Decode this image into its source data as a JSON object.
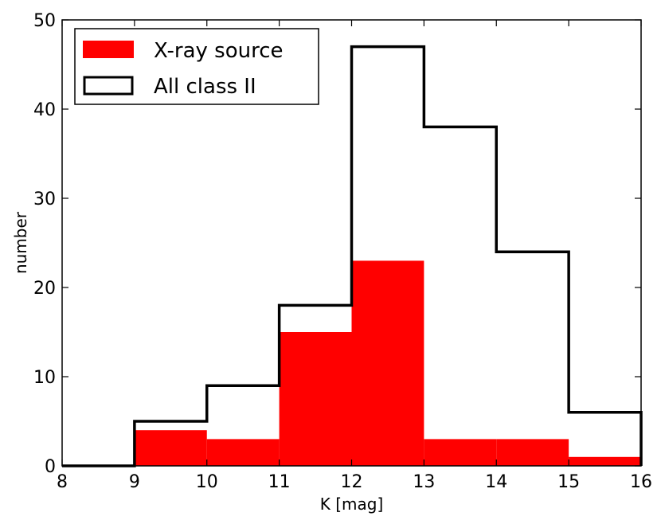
{
  "chart_data": {
    "type": "bar",
    "title": "",
    "xlabel": "K [mag]",
    "ylabel": "number",
    "xlim": [
      8,
      16
    ],
    "ylim": [
      0,
      50
    ],
    "xticks": [
      "8",
      "9",
      "10",
      "11",
      "12",
      "13",
      "14",
      "15",
      "16"
    ],
    "yticks": [
      "0",
      "10",
      "20",
      "30",
      "40",
      "50"
    ],
    "bin_edges": [
      8,
      9,
      10,
      11,
      12,
      13,
      14,
      15,
      16
    ],
    "series": [
      {
        "name": "X-ray source",
        "style": "filled",
        "color": "#ff0000",
        "values": [
          0,
          4,
          3,
          15,
          23,
          3,
          3,
          1
        ]
      },
      {
        "name": "All class II",
        "style": "step-outline",
        "color": "#000000",
        "values": [
          0,
          5,
          9,
          18,
          47,
          38,
          24,
          6
        ]
      }
    ],
    "grid": false,
    "legend_position": "top-left"
  }
}
